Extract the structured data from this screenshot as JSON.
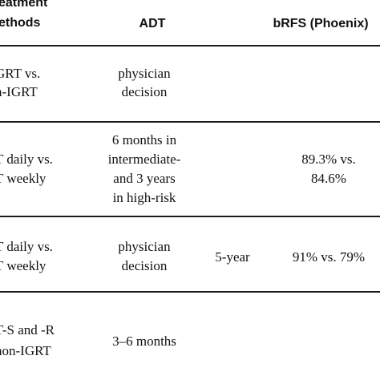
{
  "header": {
    "treatment_line1": "eatment",
    "treatment_line2": "ethods",
    "adt": "ADT",
    "brfs": "bRFS (Phoenix)"
  },
  "rows": [
    {
      "treatment": [
        "GRT vs.",
        "n-IGRT"
      ],
      "adt": [
        "physician",
        "decision"
      ],
      "followup": "",
      "brfs": []
    },
    {
      "treatment": [
        "T daily vs.",
        "T weekly"
      ],
      "adt": [
        "6 months in",
        "intermediate-",
        "and 3 years",
        "in high-risk"
      ],
      "followup": "",
      "brfs": [
        "89.3% vs.",
        "84.6%"
      ]
    },
    {
      "treatment": [
        "T daily vs.",
        "T weekly"
      ],
      "adt": [
        "physician",
        "decision"
      ],
      "followup": "5-year",
      "brfs": [
        "91% vs. 79%"
      ]
    },
    {
      "treatment": [
        "T-S and -R",
        "non-IGRT"
      ],
      "adt": [
        "3–6 months"
      ],
      "followup": "",
      "brfs": []
    }
  ]
}
